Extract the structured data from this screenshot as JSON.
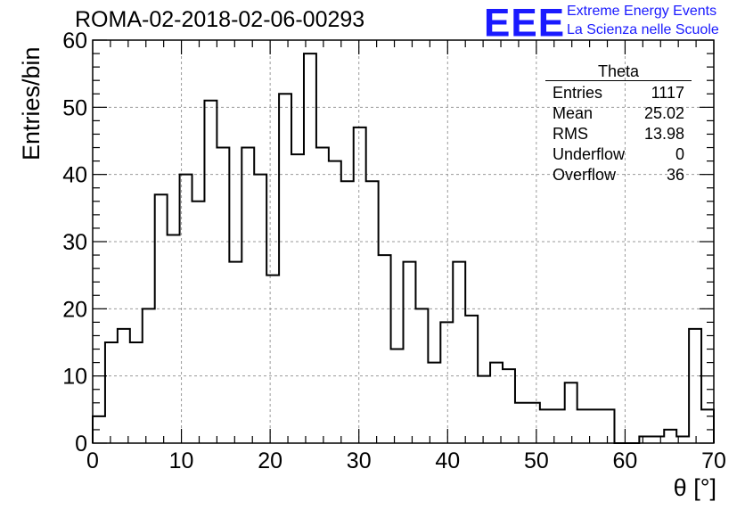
{
  "header": {
    "run_title": "ROMA-02-2018-02-06-00293"
  },
  "logo": {
    "mark": "EEE",
    "line1": "Extreme Energy Events",
    "line2": "La Scienza nelle Scuole",
    "color": "#1a1aff"
  },
  "stats_box": {
    "name": "Theta",
    "rows": [
      {
        "label": "Entries",
        "value": "1117"
      },
      {
        "label": "Mean",
        "value": "25.02"
      },
      {
        "label": "RMS",
        "value": "13.98"
      },
      {
        "label": "Underflow",
        "value": "0"
      },
      {
        "label": "Overflow",
        "value": "36"
      }
    ]
  },
  "chart_data": {
    "type": "histogram",
    "title": "ROMA-02-2018-02-06-00293",
    "xlabel": "θ [°]",
    "ylabel": "Entries/bin",
    "xlim": [
      0,
      70
    ],
    "ylim": [
      0,
      60
    ],
    "bin_width": 1.4,
    "bin_edges_start": 0,
    "x_ticks": [
      0,
      10,
      20,
      30,
      40,
      50,
      60,
      70
    ],
    "y_ticks": [
      0,
      10,
      20,
      30,
      40,
      50,
      60
    ],
    "grid": true,
    "values": [
      4,
      15,
      17,
      15,
      20,
      37,
      31,
      40,
      36,
      51,
      44,
      27,
      44,
      40,
      25,
      52,
      43,
      58,
      44,
      42,
      39,
      47,
      39,
      28,
      14,
      27,
      20,
      12,
      18,
      27,
      19,
      10,
      12,
      11,
      6,
      6,
      5,
      5,
      9,
      5,
      5,
      5,
      0,
      0,
      1,
      1,
      2,
      1,
      17,
      5
    ]
  }
}
